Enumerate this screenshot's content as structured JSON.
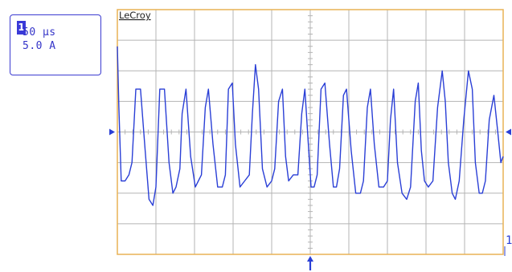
{
  "brand": "LeCroy",
  "channel": {
    "number": "1",
    "timebase": "50 µs",
    "vertical_scale": "5.0 A"
  },
  "trace_marker_label": "1",
  "colors": {
    "trace": "#2a3fd6",
    "grid": "#b4b4b4",
    "border": "#e8b255",
    "marker": "#2a3fd6"
  },
  "chart_data": {
    "type": "line",
    "x_unit": "µs",
    "y_unit": "A",
    "x_divisions": 10,
    "y_divisions": 8,
    "xlim": [
      -250,
      250
    ],
    "ylim": [
      -20,
      20
    ],
    "grid": true,
    "series": [
      {
        "x": [
          -250,
          -248,
          -245,
          -240,
          -235,
          -231,
          -226,
          -220,
          -214,
          -209,
          -204,
          -200,
          -195,
          -189,
          -183,
          -178,
          -174,
          -169,
          -166,
          -161,
          -155,
          -149,
          -145,
          -141,
          -136,
          -132,
          -126,
          -120,
          -114,
          -110,
          -106,
          -101,
          -97,
          -91,
          -85,
          -79,
          -75,
          -71,
          -67,
          -62,
          -56,
          -50,
          -46,
          -41,
          -36,
          -32,
          -28,
          -22,
          -16,
          -11,
          -7,
          -2,
          1,
          5,
          9,
          14,
          19,
          25,
          30,
          34,
          38,
          43,
          47,
          53,
          59,
          65,
          69,
          74,
          78,
          83,
          89,
          95,
          100,
          104,
          108,
          113,
          119,
          125,
          130,
          136,
          140,
          144,
          148,
          153,
          159,
          165,
          171,
          175,
          179,
          184,
          188,
          193,
          199,
          205,
          210,
          214,
          219,
          223,
          227,
          232,
          238,
          243,
          247,
          250
        ],
        "y": [
          14,
          4,
          -8,
          -8,
          -7,
          -5,
          7,
          7,
          -3,
          -11,
          -12,
          -9,
          7,
          7,
          -5,
          -10,
          -9,
          -6,
          3,
          7,
          -4,
          -9,
          -8,
          -7,
          4,
          7,
          -2,
          -9,
          -9,
          -7,
          7,
          8,
          -2,
          -9,
          -8,
          -7,
          3,
          11,
          7,
          -6,
          -9,
          -8,
          -6,
          5,
          7,
          -4,
          -8,
          -7,
          -7,
          3,
          7,
          -3,
          -9,
          -9,
          -7,
          7,
          8,
          -2,
          -9,
          -9,
          -6,
          6,
          7,
          -3,
          -10,
          -10,
          -8,
          4,
          7,
          -2,
          -9,
          -9,
          -8,
          2,
          7,
          -5,
          -10,
          -11,
          -9,
          5,
          8,
          -3,
          -8,
          -9,
          -8,
          4,
          10,
          5,
          -5,
          -10,
          -11,
          -8,
          2,
          10,
          7,
          -5,
          -10,
          -10,
          -8,
          2,
          6,
          0,
          -5,
          -4
        ]
      }
    ]
  }
}
